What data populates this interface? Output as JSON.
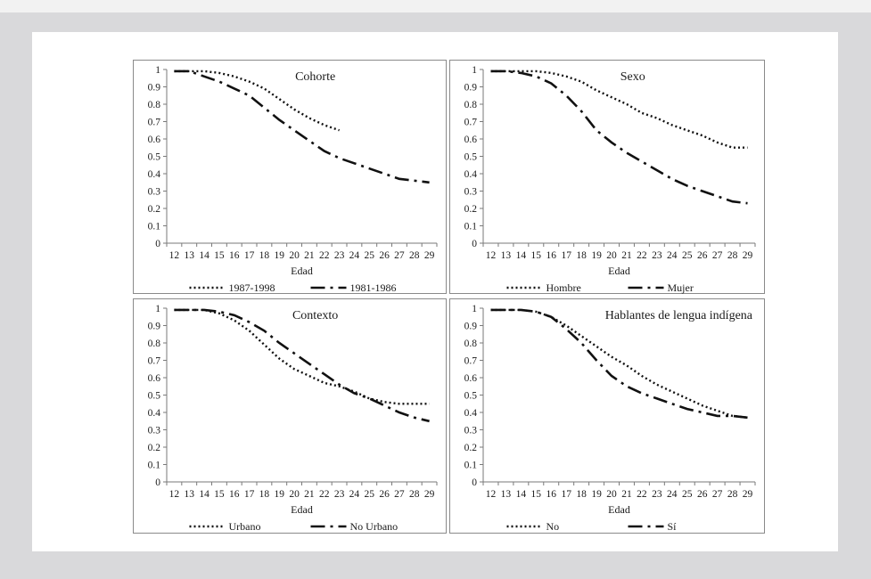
{
  "chart_data": [
    {
      "type": "line",
      "title": "Cohorte",
      "xlabel": "Edad",
      "ylabel": "",
      "ylim": [
        0,
        1
      ],
      "yticks": [
        "0",
        "0.1",
        "0.2",
        "0.3",
        "0.4",
        "0.5",
        "0.6",
        "0.7",
        "0.8",
        "0.9",
        "1"
      ],
      "categories": [
        "12",
        "13",
        "14",
        "15",
        "16",
        "17",
        "18",
        "19",
        "20",
        "21",
        "22",
        "23",
        "24",
        "25",
        "26",
        "27",
        "28",
        "29"
      ],
      "legend_position": "bottom",
      "series": [
        {
          "name": "1987-1998",
          "style": "dotted",
          "values": [
            0.99,
            0.99,
            0.99,
            0.98,
            0.96,
            0.93,
            0.89,
            0.83,
            0.77,
            0.72,
            0.68,
            0.65,
            null,
            null,
            null,
            null,
            null,
            null
          ]
        },
        {
          "name": "1981-1986",
          "style": "dashdot",
          "values": [
            0.99,
            0.99,
            0.96,
            0.93,
            0.89,
            0.85,
            0.78,
            0.71,
            0.65,
            0.59,
            0.53,
            0.49,
            0.46,
            0.43,
            0.4,
            0.37,
            0.36,
            0.35
          ]
        }
      ]
    },
    {
      "type": "line",
      "title": "Sexo",
      "xlabel": "Edad",
      "ylabel": "",
      "ylim": [
        0,
        1
      ],
      "yticks": [
        "0",
        "0.1",
        "0.2",
        "0.3",
        "0.4",
        "0.5",
        "0.6",
        "0.7",
        "0.8",
        "0.9",
        "1"
      ],
      "categories": [
        "12",
        "13",
        "14",
        "15",
        "16",
        "17",
        "18",
        "19",
        "20",
        "21",
        "22",
        "23",
        "24",
        "25",
        "26",
        "27",
        "28",
        "29"
      ],
      "legend_position": "bottom",
      "series": [
        {
          "name": "Hombre",
          "style": "dotted",
          "values": [
            0.99,
            0.99,
            0.99,
            0.99,
            0.98,
            0.96,
            0.93,
            0.88,
            0.84,
            0.8,
            0.75,
            0.72,
            0.68,
            0.65,
            0.62,
            0.58,
            0.55,
            0.55
          ]
        },
        {
          "name": "Mujer",
          "style": "dashdot",
          "values": [
            0.99,
            0.99,
            0.98,
            0.96,
            0.92,
            0.85,
            0.76,
            0.65,
            0.58,
            0.52,
            0.47,
            0.42,
            0.37,
            0.33,
            0.3,
            0.27,
            0.24,
            0.23
          ]
        }
      ]
    },
    {
      "type": "line",
      "title": "Contexto",
      "xlabel": "Edad",
      "ylabel": "",
      "ylim": [
        0,
        1
      ],
      "yticks": [
        "0",
        "0.1",
        "0.2",
        "0.3",
        "0.4",
        "0.5",
        "0.6",
        "0.7",
        "0.8",
        "0.9",
        "1"
      ],
      "categories": [
        "12",
        "13",
        "14",
        "15",
        "16",
        "17",
        "18",
        "19",
        "20",
        "21",
        "22",
        "23",
        "24",
        "25",
        "26",
        "27",
        "28",
        "29"
      ],
      "legend_position": "bottom",
      "series": [
        {
          "name": "Urbano",
          "style": "dotted",
          "values": [
            0.99,
            0.99,
            0.99,
            0.97,
            0.93,
            0.87,
            0.79,
            0.71,
            0.65,
            0.61,
            0.57,
            0.55,
            0.52,
            0.48,
            0.46,
            0.45,
            0.45,
            0.45
          ]
        },
        {
          "name": "No Urbano",
          "style": "dashdot",
          "values": [
            0.99,
            0.99,
            0.99,
            0.98,
            0.96,
            0.92,
            0.87,
            0.8,
            0.74,
            0.68,
            0.62,
            0.56,
            0.51,
            0.48,
            0.44,
            0.4,
            0.37,
            0.35
          ]
        }
      ]
    },
    {
      "type": "line",
      "title": "Hablantes de lengua indígena",
      "xlabel": "Edad",
      "ylabel": "",
      "ylim": [
        0,
        1
      ],
      "yticks": [
        "0",
        "0.1",
        "0.2",
        "0.3",
        "0.4",
        "0.5",
        "0.6",
        "0.7",
        "0.8",
        "0.9",
        "1"
      ],
      "categories": [
        "12",
        "13",
        "14",
        "15",
        "16",
        "17",
        "18",
        "19",
        "20",
        "21",
        "22",
        "23",
        "24",
        "25",
        "26",
        "27",
        "28",
        "29"
      ],
      "legend_position": "bottom",
      "series": [
        {
          "name": "No",
          "style": "dotted",
          "values": [
            0.99,
            0.99,
            0.99,
            0.98,
            0.95,
            0.9,
            0.84,
            0.78,
            0.72,
            0.67,
            0.61,
            0.56,
            0.52,
            0.48,
            0.44,
            0.41,
            0.38,
            0.37
          ]
        },
        {
          "name": "Sí",
          "style": "dashdot",
          "values": [
            0.99,
            0.99,
            0.99,
            0.98,
            0.95,
            0.88,
            0.8,
            0.7,
            0.61,
            0.55,
            0.51,
            0.48,
            0.45,
            0.42,
            0.4,
            0.38,
            0.38,
            0.37
          ]
        }
      ]
    }
  ]
}
